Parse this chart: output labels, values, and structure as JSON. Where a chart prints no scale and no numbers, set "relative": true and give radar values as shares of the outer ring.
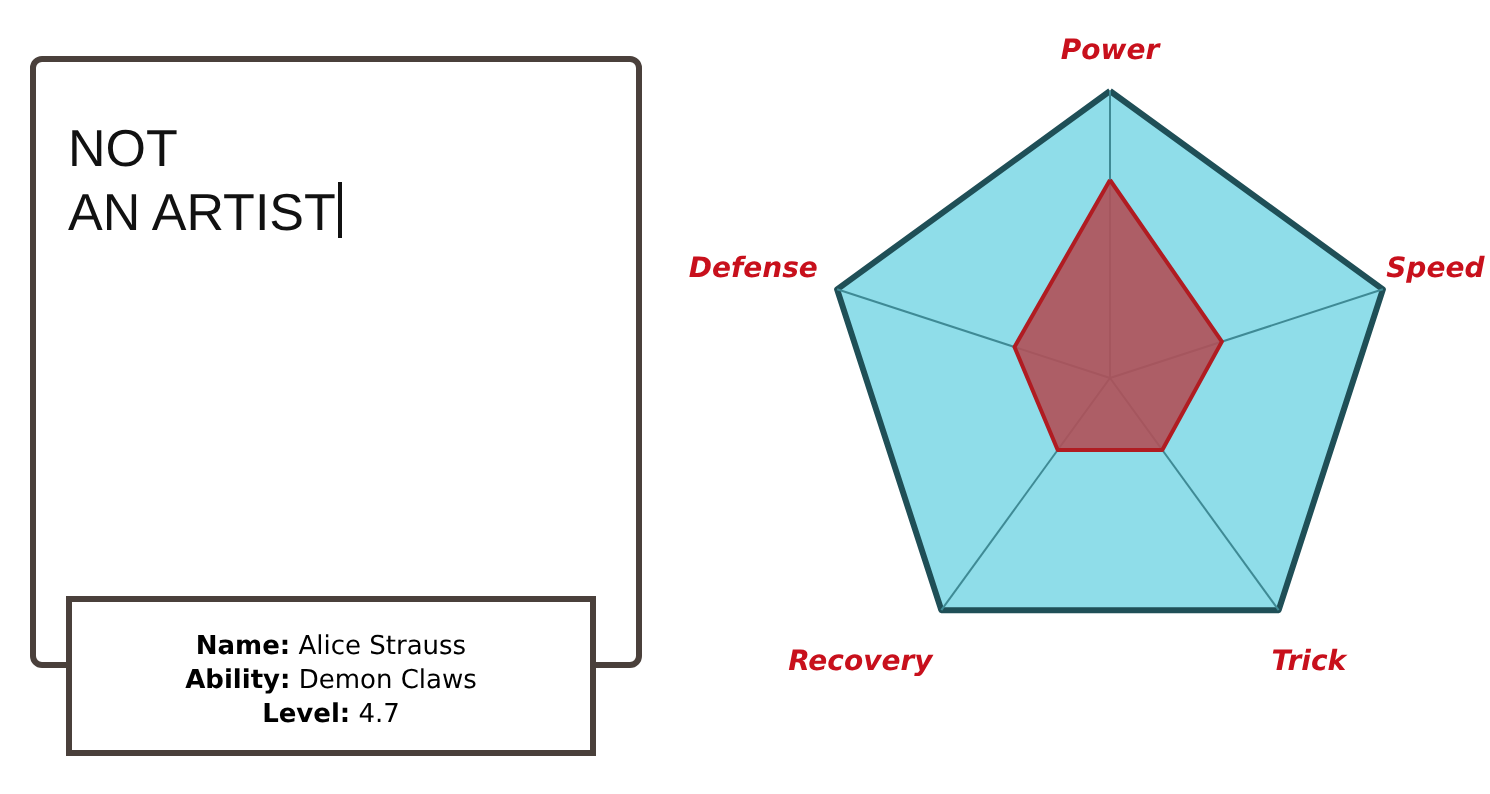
{
  "chart_data": [
    {
      "type": "other",
      "title": "NOT AN ARTIST",
      "annotations": [
        "Name: Alice Strauss",
        "Ability: Demon Claws",
        "Level: 4.7"
      ]
    },
    {
      "type": "radar",
      "relative": true,
      "categories": [
        "Power",
        "Speed",
        "Trick",
        "Recovery",
        "Defense"
      ],
      "grid": true,
      "series": [
        {
          "color": "#b05058",
          "values": [
            0.69,
            0.41,
            0.31,
            0.31,
            0.35
          ]
        }
      ]
    }
  ]
}
